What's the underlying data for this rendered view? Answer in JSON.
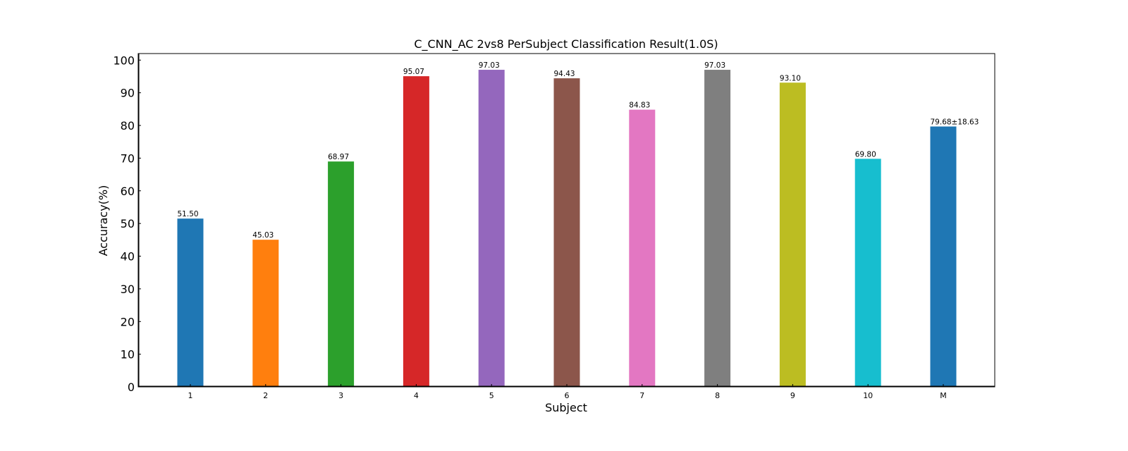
{
  "chart_data": {
    "type": "bar",
    "title": "C_CNN_AC 2vs8 PerSubject Classification Result(1.0S)",
    "xlabel": "Subject",
    "ylabel": "Accuracy(%)",
    "ylim": [
      0,
      102
    ],
    "yticks": [
      0,
      10,
      20,
      30,
      40,
      50,
      60,
      70,
      80,
      90,
      100
    ],
    "grid": false,
    "categories": [
      "1",
      "2",
      "3",
      "4",
      "5",
      "6",
      "7",
      "8",
      "9",
      "10",
      "M"
    ],
    "values": [
      51.5,
      45.03,
      68.97,
      95.07,
      97.03,
      94.43,
      84.83,
      97.03,
      93.1,
      69.8,
      79.68
    ],
    "data_labels": [
      "51.50",
      "45.03",
      "68.97",
      "95.07",
      "97.03",
      "94.43",
      "84.83",
      "97.03",
      "93.10",
      "69.80",
      "79.68±18.63"
    ],
    "colors": [
      "#1f77b4",
      "#ff7f0e",
      "#2ca02c",
      "#d62728",
      "#9467bd",
      "#8c564b",
      "#e377c2",
      "#7f7f7f",
      "#bcbd22",
      "#17becf",
      "#1f77b4"
    ],
    "label_colors": [
      "#000000",
      "#000000",
      "#000000",
      "#000000",
      "#000000",
      "#000000",
      "#000000",
      "#000000",
      "#000000",
      "#000000",
      "#ff0000"
    ]
  }
}
